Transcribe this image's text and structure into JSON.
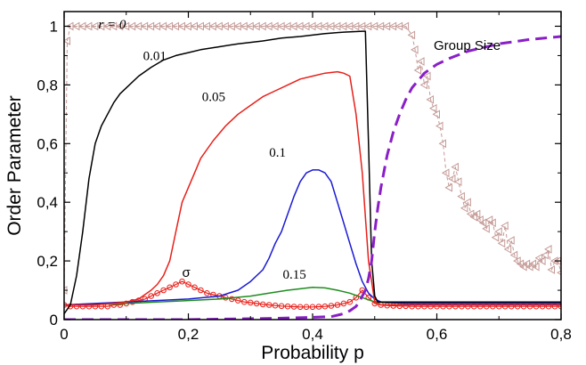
{
  "chart_data": {
    "type": "line",
    "xlabel": "Probability p",
    "ylabel": "Order Parameter",
    "xlim": [
      0,
      0.8
    ],
    "ylim": [
      0,
      1.05
    ],
    "grid": false,
    "legend": "none",
    "x_ticks": [
      0,
      0.2,
      0.4,
      0.6,
      0.8
    ],
    "x_tick_labels": [
      "0",
      "0,2",
      "0,4",
      "0,6",
      "0,8"
    ],
    "y_ticks": [
      0,
      0.2,
      0.4,
      0.6,
      0.8,
      1
    ],
    "y_tick_labels": [
      "0",
      "0,2",
      "0,4",
      "0,6",
      "0,8",
      "1"
    ],
    "series": [
      {
        "key": "r0",
        "color": "#c49a96",
        "style": "dashed-triangle-markers",
        "x": [
          0,
          0.005,
          0.01,
          0.02,
          0.03,
          0.04,
          0.05,
          0.06,
          0.07,
          0.08,
          0.09,
          0.1,
          0.11,
          0.12,
          0.13,
          0.14,
          0.15,
          0.16,
          0.17,
          0.18,
          0.19,
          0.2,
          0.21,
          0.22,
          0.23,
          0.24,
          0.25,
          0.26,
          0.27,
          0.28,
          0.29,
          0.3,
          0.31,
          0.32,
          0.33,
          0.34,
          0.35,
          0.36,
          0.37,
          0.38,
          0.39,
          0.4,
          0.41,
          0.42,
          0.43,
          0.44,
          0.45,
          0.46,
          0.47,
          0.48,
          0.49,
          0.5,
          0.51,
          0.52,
          0.53,
          0.54,
          0.55,
          0.56,
          0.565,
          0.57,
          0.575,
          0.58,
          0.585,
          0.59,
          0.595,
          0.6,
          0.605,
          0.61,
          0.615,
          0.62,
          0.625,
          0.63,
          0.635,
          0.64,
          0.645,
          0.65,
          0.655,
          0.66,
          0.665,
          0.67,
          0.675,
          0.68,
          0.685,
          0.69,
          0.695,
          0.7,
          0.705,
          0.71,
          0.715,
          0.72,
          0.725,
          0.73,
          0.735,
          0.74,
          0.745,
          0.75,
          0.755,
          0.76,
          0.765,
          0.77,
          0.775,
          0.78,
          0.785,
          0.79,
          0.795,
          0.8
        ],
        "y": [
          0.1,
          0.95,
          1.0,
          1.0,
          1.0,
          1.0,
          1.0,
          1.0,
          1.0,
          1.0,
          1.0,
          1.0,
          1.0,
          1.0,
          1.0,
          1.0,
          1.0,
          1.0,
          1.0,
          1.0,
          1.0,
          1.0,
          1.0,
          1.0,
          1.0,
          1.0,
          1.0,
          1.0,
          1.0,
          1.0,
          1.0,
          1.0,
          1.0,
          1.0,
          1.0,
          1.0,
          1.0,
          1.0,
          1.0,
          1.0,
          1.0,
          1.0,
          1.0,
          1.0,
          1.0,
          1.0,
          1.0,
          1.0,
          1.0,
          1.0,
          1.0,
          1.0,
          1.0,
          1.0,
          1.0,
          1.0,
          1.0,
          0.97,
          0.92,
          0.85,
          0.88,
          0.8,
          0.83,
          0.75,
          0.72,
          0.7,
          0.66,
          0.6,
          0.5,
          0.45,
          0.48,
          0.52,
          0.47,
          0.42,
          0.38,
          0.4,
          0.36,
          0.35,
          0.36,
          0.34,
          0.33,
          0.31,
          0.34,
          0.33,
          0.28,
          0.3,
          0.26,
          0.32,
          0.24,
          0.27,
          0.22,
          0.2,
          0.19,
          0.18,
          0.19,
          0.18,
          0.19,
          0.18,
          0.21,
          0.2,
          0.22,
          0.24,
          0.17,
          0.2,
          0.2,
          0.16
        ]
      },
      {
        "key": "r001",
        "color": "#000000",
        "style": "solid",
        "x": [
          0,
          0.01,
          0.02,
          0.03,
          0.04,
          0.05,
          0.06,
          0.07,
          0.08,
          0.09,
          0.1,
          0.12,
          0.14,
          0.16,
          0.18,
          0.2,
          0.22,
          0.25,
          0.28,
          0.3,
          0.32,
          0.35,
          0.38,
          0.4,
          0.42,
          0.45,
          0.48,
          0.485,
          0.49,
          0.495,
          0.5,
          0.505,
          0.51,
          0.52,
          0.55,
          0.6,
          0.7,
          0.8
        ],
        "y": [
          0.02,
          0.05,
          0.15,
          0.3,
          0.48,
          0.6,
          0.66,
          0.7,
          0.74,
          0.77,
          0.79,
          0.83,
          0.86,
          0.885,
          0.9,
          0.91,
          0.92,
          0.93,
          0.94,
          0.945,
          0.95,
          0.96,
          0.965,
          0.97,
          0.975,
          0.98,
          0.983,
          0.983,
          0.6,
          0.2,
          0.08,
          0.06,
          0.06,
          0.06,
          0.06,
          0.06,
          0.06,
          0.06
        ]
      },
      {
        "key": "r005",
        "color": "#e8201a",
        "style": "solid",
        "x": [
          0,
          0.05,
          0.1,
          0.12,
          0.14,
          0.15,
          0.16,
          0.17,
          0.18,
          0.19,
          0.2,
          0.21,
          0.22,
          0.24,
          0.26,
          0.28,
          0.3,
          0.32,
          0.34,
          0.36,
          0.38,
          0.4,
          0.42,
          0.44,
          0.45,
          0.46,
          0.47,
          0.48,
          0.49,
          0.5,
          0.51,
          0.55,
          0.6,
          0.7,
          0.8
        ],
        "y": [
          0.05,
          0.05,
          0.06,
          0.07,
          0.1,
          0.12,
          0.15,
          0.2,
          0.3,
          0.4,
          0.45,
          0.5,
          0.55,
          0.61,
          0.66,
          0.7,
          0.73,
          0.76,
          0.78,
          0.8,
          0.82,
          0.83,
          0.84,
          0.845,
          0.84,
          0.83,
          0.7,
          0.5,
          0.2,
          0.06,
          0.05,
          0.05,
          0.05,
          0.05,
          0.05
        ]
      },
      {
        "key": "r01",
        "color": "#1a1ad4",
        "style": "solid",
        "x": [
          0,
          0.1,
          0.2,
          0.25,
          0.28,
          0.3,
          0.32,
          0.33,
          0.34,
          0.35,
          0.36,
          0.37,
          0.38,
          0.39,
          0.4,
          0.41,
          0.42,
          0.43,
          0.44,
          0.45,
          0.46,
          0.47,
          0.48,
          0.49,
          0.5,
          0.51,
          0.55,
          0.6,
          0.7,
          0.8
        ],
        "y": [
          0.05,
          0.06,
          0.07,
          0.08,
          0.1,
          0.13,
          0.17,
          0.21,
          0.26,
          0.3,
          0.36,
          0.42,
          0.47,
          0.5,
          0.51,
          0.51,
          0.5,
          0.47,
          0.4,
          0.33,
          0.26,
          0.19,
          0.13,
          0.09,
          0.07,
          0.06,
          0.055,
          0.055,
          0.055,
          0.055
        ]
      },
      {
        "key": "r015",
        "color": "#1e8c1e",
        "style": "solid",
        "x": [
          0,
          0.1,
          0.15,
          0.2,
          0.25,
          0.3,
          0.33,
          0.36,
          0.38,
          0.4,
          0.42,
          0.44,
          0.46,
          0.48,
          0.5,
          0.55,
          0.6,
          0.7,
          0.8
        ],
        "y": [
          0.05,
          0.055,
          0.06,
          0.065,
          0.07,
          0.08,
          0.09,
          0.1,
          0.105,
          0.11,
          0.108,
          0.1,
          0.09,
          0.075,
          0.06,
          0.055,
          0.055,
          0.055,
          0.055
        ]
      },
      {
        "key": "sigma",
        "color": "#e8201a",
        "style": "circle-markers",
        "x": [
          0,
          0.01,
          0.02,
          0.03,
          0.04,
          0.05,
          0.06,
          0.07,
          0.08,
          0.09,
          0.1,
          0.11,
          0.12,
          0.13,
          0.14,
          0.15,
          0.16,
          0.17,
          0.18,
          0.19,
          0.2,
          0.21,
          0.22,
          0.23,
          0.24,
          0.25,
          0.26,
          0.27,
          0.28,
          0.29,
          0.3,
          0.31,
          0.32,
          0.33,
          0.34,
          0.35,
          0.36,
          0.37,
          0.38,
          0.39,
          0.4,
          0.41,
          0.42,
          0.43,
          0.44,
          0.45,
          0.46,
          0.47,
          0.48,
          0.49,
          0.5,
          0.51,
          0.52,
          0.53,
          0.54,
          0.55,
          0.56,
          0.57,
          0.58,
          0.59,
          0.6,
          0.61,
          0.62,
          0.63,
          0.64,
          0.65,
          0.66,
          0.67,
          0.68,
          0.69,
          0.7,
          0.71,
          0.72,
          0.73,
          0.74,
          0.75,
          0.76,
          0.77,
          0.78,
          0.79,
          0.8
        ],
        "y": [
          0.05,
          0.045,
          0.045,
          0.045,
          0.045,
          0.045,
          0.045,
          0.045,
          0.05,
          0.05,
          0.055,
          0.06,
          0.065,
          0.07,
          0.08,
          0.09,
          0.1,
          0.11,
          0.12,
          0.13,
          0.12,
          0.11,
          0.1,
          0.09,
          0.085,
          0.08,
          0.075,
          0.07,
          0.065,
          0.06,
          0.058,
          0.055,
          0.052,
          0.05,
          0.048,
          0.046,
          0.045,
          0.044,
          0.043,
          0.043,
          0.043,
          0.044,
          0.045,
          0.047,
          0.05,
          0.055,
          0.06,
          0.075,
          0.1,
          0.075,
          0.055,
          0.05,
          0.048,
          0.047,
          0.046,
          0.046,
          0.045,
          0.045,
          0.045,
          0.045,
          0.045,
          0.045,
          0.045,
          0.045,
          0.045,
          0.045,
          0.045,
          0.045,
          0.045,
          0.045,
          0.045,
          0.045,
          0.045,
          0.045,
          0.045,
          0.045,
          0.045,
          0.045,
          0.045,
          0.045,
          0.045
        ]
      },
      {
        "key": "group-size",
        "color": "#8a1fc8",
        "style": "thick-dashed",
        "x": [
          0,
          0.1,
          0.2,
          0.3,
          0.35,
          0.4,
          0.43,
          0.45,
          0.46,
          0.47,
          0.475,
          0.48,
          0.485,
          0.49,
          0.495,
          0.5,
          0.505,
          0.51,
          0.52,
          0.53,
          0.54,
          0.55,
          0.56,
          0.58,
          0.6,
          0.62,
          0.65,
          0.7,
          0.75,
          0.8
        ],
        "y": [
          0,
          0.0,
          0.0,
          0.003,
          0.005,
          0.008,
          0.01,
          0.02,
          0.03,
          0.045,
          0.06,
          0.08,
          0.1,
          0.14,
          0.2,
          0.3,
          0.38,
          0.45,
          0.56,
          0.64,
          0.7,
          0.75,
          0.79,
          0.84,
          0.87,
          0.89,
          0.915,
          0.94,
          0.955,
          0.965
        ]
      }
    ],
    "annotations": [
      {
        "key": "r0-label",
        "text": "r = 0",
        "x": 0.055,
        "y": 0.993,
        "font": "serif-italic"
      },
      {
        "key": "r001-label",
        "text": "0.01",
        "x": 0.127,
        "y": 0.885,
        "font": "serif"
      },
      {
        "key": "r005-label",
        "text": "0.05",
        "x": 0.222,
        "y": 0.745,
        "font": "serif"
      },
      {
        "key": "r01-label",
        "text": "0.1",
        "x": 0.33,
        "y": 0.555,
        "font": "serif"
      },
      {
        "key": "r015-label",
        "text": "0.15",
        "x": 0.352,
        "y": 0.14,
        "font": "serif"
      },
      {
        "key": "sigma-label",
        "text": "σ",
        "x": 0.19,
        "y": 0.145,
        "font": "sans-large"
      },
      {
        "key": "group-size-label",
        "text": "Group Size",
        "x": 0.595,
        "y": 0.92,
        "font": "sans"
      }
    ]
  }
}
